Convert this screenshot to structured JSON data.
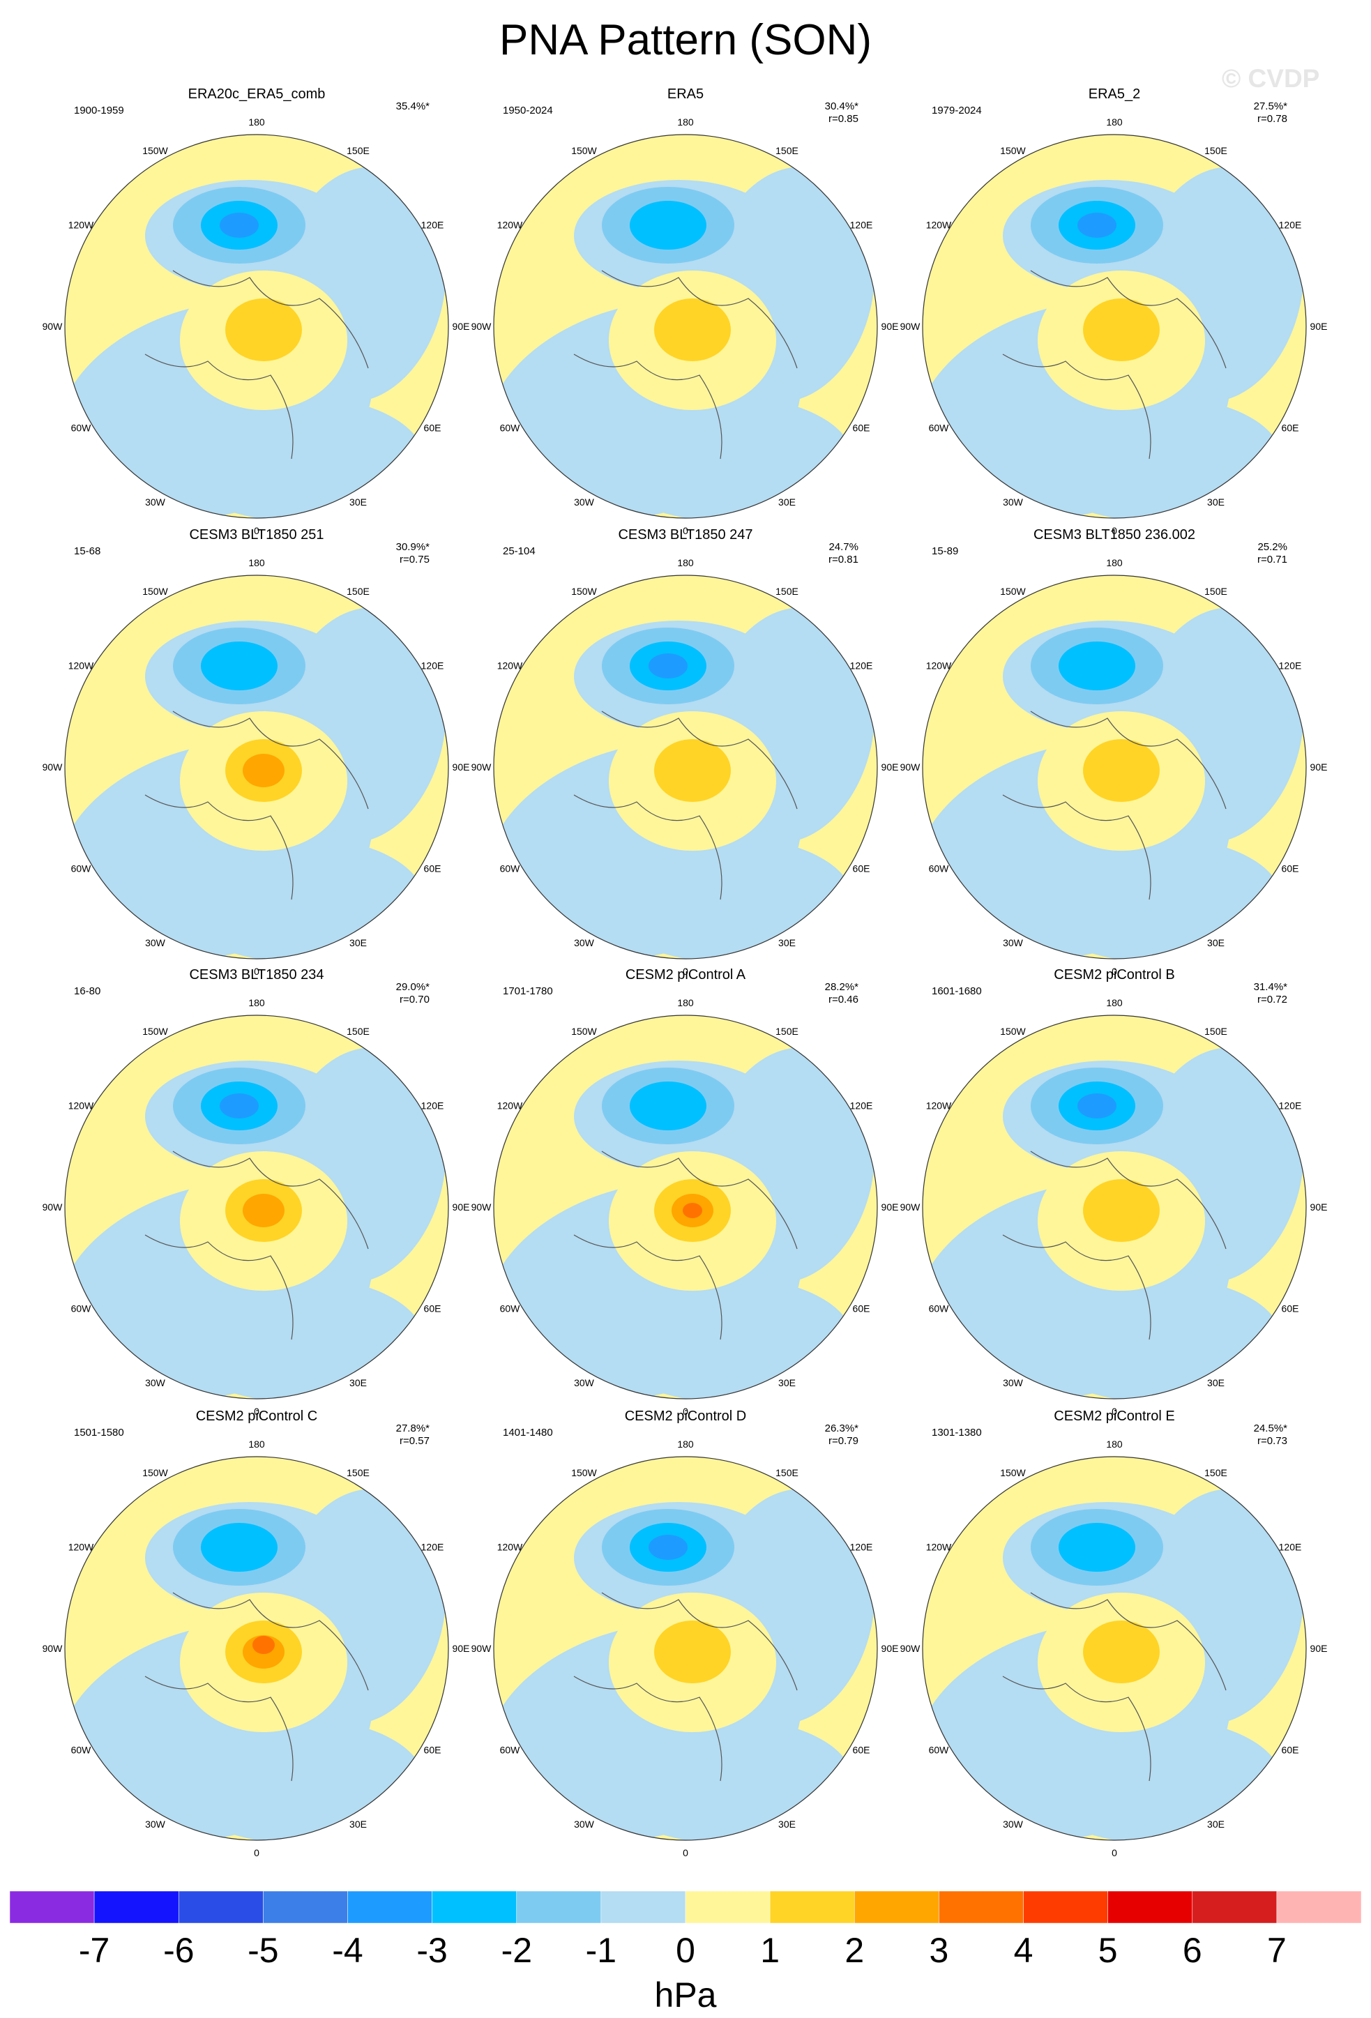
{
  "title": "PNA Pattern (SON)",
  "watermark": "© CVDP",
  "lon_labels": [
    "180",
    "150E",
    "120E",
    "90E",
    "60E",
    "30E",
    "0",
    "30W",
    "60W",
    "90W",
    "120W",
    "150W"
  ],
  "panels": [
    {
      "name": "ERA20c_ERA5_comb",
      "years": "1900-1959",
      "pct": "35.4%*",
      "r": ""
    },
    {
      "name": "ERA5",
      "years": "1950-2024",
      "pct": "30.4%*",
      "r": "r=0.85"
    },
    {
      "name": "ERA5_2",
      "years": "1979-2024",
      "pct": "27.5%*",
      "r": "r=0.78"
    },
    {
      "name": "CESM3 BLT1850 251",
      "years": "15-68",
      "pct": "30.9%*",
      "r": "r=0.75"
    },
    {
      "name": "CESM3 BLT1850 247",
      "years": "25-104",
      "pct": "24.7%",
      "r": "r=0.81"
    },
    {
      "name": "CESM3 BLT1850 236.002",
      "years": "15-89",
      "pct": "25.2%",
      "r": "r=0.71"
    },
    {
      "name": "CESM3 BLT1850 234",
      "years": "16-80",
      "pct": "29.0%*",
      "r": "r=0.70"
    },
    {
      "name": "CESM2 piControl A",
      "years": "1701-1780",
      "pct": "28.2%*",
      "r": "r=0.46"
    },
    {
      "name": "CESM2 piControl B",
      "years": "1601-1680",
      "pct": "31.4%*",
      "r": "r=0.72"
    },
    {
      "name": "CESM2 piControl C",
      "years": "1501-1580",
      "pct": "27.8%*",
      "r": "r=0.57"
    },
    {
      "name": "CESM2 piControl D",
      "years": "1401-1480",
      "pct": "26.3%*",
      "r": "r=0.79"
    },
    {
      "name": "CESM2 piControl E",
      "years": "1301-1380",
      "pct": "24.5%*",
      "r": "r=0.73"
    }
  ],
  "colorbar": {
    "unit": "hPa",
    "tick_labels": [
      "-7",
      "-6",
      "-5",
      "-4",
      "-3",
      "-2",
      "-1",
      "0",
      "1",
      "2",
      "3",
      "4",
      "5",
      "6",
      "7"
    ],
    "colors": [
      "#8a2be2",
      "#1414ff",
      "#2a4de8",
      "#3d7fe8",
      "#1e9bff",
      "#00c0ff",
      "#7ecbf2",
      "#b4dcf2",
      "#fff69a",
      "#ffd426",
      "#ffa600",
      "#ff7200",
      "#ff3c00",
      "#e60000",
      "#d61e1e",
      "#ffb4b4"
    ]
  }
}
